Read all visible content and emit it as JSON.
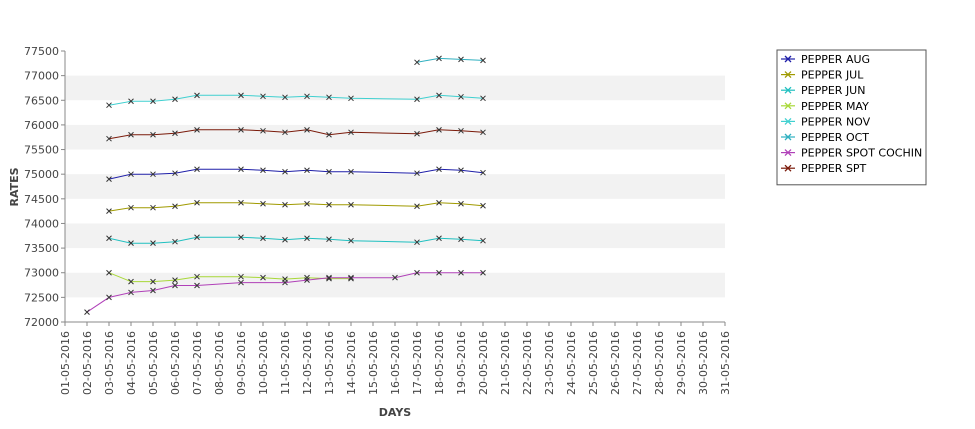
{
  "chart_data": {
    "type": "line",
    "title": "",
    "xlabel": "DAYS",
    "ylabel": "RATES",
    "ylim": [
      72000,
      77500
    ],
    "yticks": [
      72000,
      72500,
      73000,
      73500,
      74000,
      74500,
      75000,
      75500,
      76000,
      76500,
      77000,
      77500
    ],
    "y_tick_labels": [
      "72000",
      "72500",
      "73000",
      "73500",
      "74000",
      "74500",
      "75000",
      "75500",
      "76000",
      "76500",
      "77000",
      "77500"
    ],
    "x": [
      "01-05-2016",
      "02-05-2016",
      "03-05-2016",
      "04-05-2016",
      "05-05-2016",
      "06-05-2016",
      "07-05-2016",
      "08-05-2016",
      "09-05-2016",
      "10-05-2016",
      "11-05-2016",
      "12-05-2016",
      "13-05-2016",
      "14-05-2016",
      "15-05-2016",
      "16-05-2016",
      "17-05-2016",
      "18-05-2016",
      "19-05-2016",
      "20-05-2016",
      "21-05-2016",
      "22-05-2016",
      "23-05-2016",
      "24-05-2016",
      "25-05-2016",
      "26-05-2016",
      "27-05-2016",
      "28-05-2016",
      "29-05-2016",
      "30-05-2016",
      "31-05-2016"
    ],
    "x_tick_labels": [
      "01-05-2016",
      "02-05-2016",
      "03-05-2016",
      "04-05-2016",
      "05-05-2016",
      "06-05-2016",
      "07-05-2016",
      "08-05-2016",
      "09-05-2016",
      "10-05-2016",
      "11-05-2016",
      "12-05-2016",
      "13-05-2016",
      "14-05-2016",
      "15-05-2016",
      "16-05-2016",
      "17-05-2016",
      "18-05-2016",
      "19-05-2016",
      "20-05-2016",
      "21-05-2016",
      "22-05-2016",
      "23-05-2016",
      "24-05-2016",
      "25-05-2016",
      "26-05-2016",
      "27-05-2016",
      "28-05-2016",
      "29-05-2016",
      "30-05-2016",
      "31-05-2016"
    ],
    "grid": "horizontal alternating bands",
    "legend_position": "right",
    "series": [
      {
        "name": "PEPPER AUG",
        "color": "#1f1fa8",
        "points": [
          [
            "03-05-2016",
            74900
          ],
          [
            "04-05-2016",
            75000
          ],
          [
            "05-05-2016",
            75000
          ],
          [
            "06-05-2016",
            75020
          ],
          [
            "07-05-2016",
            75100
          ],
          [
            "09-05-2016",
            75100
          ],
          [
            "10-05-2016",
            75080
          ],
          [
            "11-05-2016",
            75050
          ],
          [
            "12-05-2016",
            75080
          ],
          [
            "13-05-2016",
            75050
          ],
          [
            "14-05-2016",
            75050
          ],
          [
            "17-05-2016",
            75020
          ],
          [
            "18-05-2016",
            75100
          ],
          [
            "19-05-2016",
            75080
          ],
          [
            "20-05-2016",
            75030
          ]
        ]
      },
      {
        "name": "PEPPER JUL",
        "color": "#a09a00",
        "points": [
          [
            "03-05-2016",
            74250
          ],
          [
            "04-05-2016",
            74320
          ],
          [
            "05-05-2016",
            74320
          ],
          [
            "06-05-2016",
            74350
          ],
          [
            "07-05-2016",
            74420
          ],
          [
            "09-05-2016",
            74420
          ],
          [
            "10-05-2016",
            74400
          ],
          [
            "11-05-2016",
            74380
          ],
          [
            "12-05-2016",
            74400
          ],
          [
            "13-05-2016",
            74380
          ],
          [
            "14-05-2016",
            74380
          ],
          [
            "17-05-2016",
            74350
          ],
          [
            "18-05-2016",
            74420
          ],
          [
            "19-05-2016",
            74400
          ],
          [
            "20-05-2016",
            74360
          ]
        ]
      },
      {
        "name": "PEPPER JUN",
        "color": "#20c0c0",
        "points": [
          [
            "03-05-2016",
            73700
          ],
          [
            "04-05-2016",
            73600
          ],
          [
            "05-05-2016",
            73600
          ],
          [
            "06-05-2016",
            73630
          ],
          [
            "07-05-2016",
            73720
          ],
          [
            "09-05-2016",
            73720
          ],
          [
            "10-05-2016",
            73700
          ],
          [
            "11-05-2016",
            73670
          ],
          [
            "12-05-2016",
            73700
          ],
          [
            "13-05-2016",
            73680
          ],
          [
            "14-05-2016",
            73650
          ],
          [
            "17-05-2016",
            73620
          ],
          [
            "18-05-2016",
            73700
          ],
          [
            "19-05-2016",
            73680
          ],
          [
            "20-05-2016",
            73650
          ]
        ]
      },
      {
        "name": "PEPPER MAY",
        "color": "#a8d838",
        "points": [
          [
            "03-05-2016",
            73000
          ],
          [
            "04-05-2016",
            72820
          ],
          [
            "05-05-2016",
            72820
          ],
          [
            "06-05-2016",
            72850
          ],
          [
            "07-05-2016",
            72920
          ],
          [
            "09-05-2016",
            72920
          ],
          [
            "10-05-2016",
            72900
          ],
          [
            "11-05-2016",
            72870
          ],
          [
            "12-05-2016",
            72900
          ],
          [
            "13-05-2016",
            72880
          ],
          [
            "14-05-2016",
            72880
          ]
        ]
      },
      {
        "name": "PEPPER NOV",
        "color": "#40d0d0",
        "points": [
          [
            "03-05-2016",
            76400
          ],
          [
            "04-05-2016",
            76480
          ],
          [
            "05-05-2016",
            76480
          ],
          [
            "06-05-2016",
            76520
          ],
          [
            "07-05-2016",
            76600
          ],
          [
            "09-05-2016",
            76600
          ],
          [
            "10-05-2016",
            76580
          ],
          [
            "11-05-2016",
            76560
          ],
          [
            "12-05-2016",
            76580
          ],
          [
            "13-05-2016",
            76560
          ],
          [
            "14-05-2016",
            76540
          ],
          [
            "17-05-2016",
            76520
          ],
          [
            "18-05-2016",
            76600
          ],
          [
            "19-05-2016",
            76570
          ],
          [
            "20-05-2016",
            76540
          ]
        ]
      },
      {
        "name": "PEPPER OCT",
        "color": "#30b0c0",
        "points": [
          [
            "17-05-2016",
            77270
          ],
          [
            "18-05-2016",
            77350
          ],
          [
            "19-05-2016",
            77330
          ],
          [
            "20-05-2016",
            77310
          ]
        ]
      },
      {
        "name": "PEPPER SPOT COCHIN",
        "color": "#b040b8",
        "points": [
          [
            "02-05-2016",
            72200
          ],
          [
            "03-05-2016",
            72500
          ],
          [
            "04-05-2016",
            72600
          ],
          [
            "05-05-2016",
            72640
          ],
          [
            "06-05-2016",
            72740
          ],
          [
            "07-05-2016",
            72740
          ],
          [
            "09-05-2016",
            72800
          ],
          [
            "11-05-2016",
            72800
          ],
          [
            "12-05-2016",
            72850
          ],
          [
            "13-05-2016",
            72900
          ],
          [
            "14-05-2016",
            72900
          ],
          [
            "16-05-2016",
            72900
          ],
          [
            "17-05-2016",
            73000
          ],
          [
            "18-05-2016",
            73000
          ],
          [
            "19-05-2016",
            73000
          ],
          [
            "20-05-2016",
            73000
          ]
        ]
      },
      {
        "name": "PEPPER SPT",
        "color": "#7a1a0a",
        "points": [
          [
            "03-05-2016",
            75720
          ],
          [
            "04-05-2016",
            75800
          ],
          [
            "05-05-2016",
            75800
          ],
          [
            "06-05-2016",
            75830
          ],
          [
            "07-05-2016",
            75900
          ],
          [
            "09-05-2016",
            75900
          ],
          [
            "10-05-2016",
            75880
          ],
          [
            "11-05-2016",
            75850
          ],
          [
            "12-05-2016",
            75900
          ],
          [
            "13-05-2016",
            75800
          ],
          [
            "14-05-2016",
            75850
          ],
          [
            "17-05-2016",
            75820
          ],
          [
            "18-05-2016",
            75900
          ],
          [
            "19-05-2016",
            75880
          ],
          [
            "20-05-2016",
            75850
          ]
        ]
      }
    ]
  }
}
